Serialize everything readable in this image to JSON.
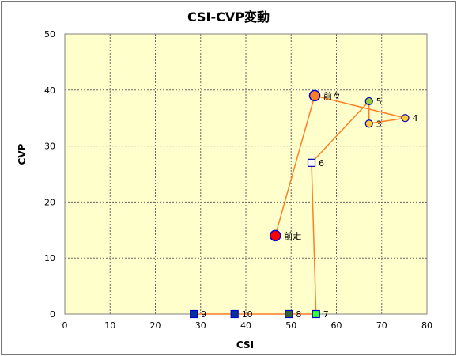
{
  "chart_data": {
    "type": "scatter",
    "title": "CSI-CVP変動",
    "xlabel": "CSI",
    "ylabel": "CVP",
    "xlim": [
      0,
      80
    ],
    "ylim": [
      0,
      50
    ],
    "x_ticks": [
      0,
      10,
      20,
      30,
      40,
      50,
      60,
      70,
      80
    ],
    "y_ticks": [
      0,
      10,
      20,
      30,
      40,
      50
    ],
    "grid": true,
    "background": "#ffffcc",
    "line_color": "#ff7f27",
    "path_order": [
      "9",
      "10",
      "8",
      "7",
      "6",
      "5",
      "3",
      "4",
      "前々",
      "前走"
    ],
    "points": [
      {
        "label": "前走",
        "x": 46.5,
        "y": 14,
        "marker": "circle-large",
        "fill": "#ff0000",
        "stroke": "#0000cc"
      },
      {
        "label": "前々",
        "x": 55.2,
        "y": 39,
        "marker": "circle-large",
        "fill": "#ff7f27",
        "stroke": "#0000cc"
      },
      {
        "label": "3",
        "x": 67.2,
        "y": 34,
        "marker": "circle",
        "fill": "#ffcc33",
        "stroke": "#0000cc"
      },
      {
        "label": "4",
        "x": 75.2,
        "y": 35,
        "marker": "circle",
        "fill": "#ffcc33",
        "stroke": "#0000cc"
      },
      {
        "label": "5",
        "x": 67.2,
        "y": 38,
        "marker": "circle",
        "fill": "#99cc33",
        "stroke": "#0000cc"
      },
      {
        "label": "6",
        "x": 54.5,
        "y": 27,
        "marker": "square",
        "fill": "#ffffff",
        "stroke": "#0000cc"
      },
      {
        "label": "7",
        "x": 55.5,
        "y": 0,
        "marker": "square",
        "fill": "#33ff33",
        "stroke": "#0000cc"
      },
      {
        "label": "8",
        "x": 49.5,
        "y": 0,
        "marker": "square",
        "fill": "#336633",
        "stroke": "#0000cc"
      },
      {
        "label": "9",
        "x": 28.5,
        "y": 0,
        "marker": "square",
        "fill": "#003399",
        "stroke": "#0000cc"
      },
      {
        "label": "10",
        "x": 37.5,
        "y": 0,
        "marker": "square",
        "fill": "#003399",
        "stroke": "#0000cc"
      }
    ]
  }
}
